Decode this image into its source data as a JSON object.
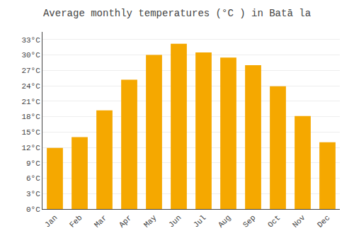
{
  "chart_data": {
    "type": "bar",
    "title": "Average monthly temperatures (°C ) in Batā la",
    "categories": [
      "Jan",
      "Feb",
      "Mar",
      "Apr",
      "May",
      "Jun",
      "Jul",
      "Aug",
      "Sep",
      "Oct",
      "Nov",
      "Dec"
    ],
    "values": [
      11.9,
      14.0,
      19.2,
      25.2,
      30.0,
      32.2,
      30.5,
      29.5,
      28.0,
      23.9,
      18.1,
      13.0
    ],
    "color": "#F5A800",
    "ylim": [
      0,
      34.5
    ],
    "yticks": [
      {
        "value": 0,
        "label": "0°C"
      },
      {
        "value": 3,
        "label": "3°C"
      },
      {
        "value": 6,
        "label": "6°C"
      },
      {
        "value": 9,
        "label": "9°C"
      },
      {
        "value": 12,
        "label": "12°C"
      },
      {
        "value": 15,
        "label": "15°C"
      },
      {
        "value": 18,
        "label": "18°C"
      },
      {
        "value": 21,
        "label": "21°C"
      },
      {
        "value": 24,
        "label": "24°C"
      },
      {
        "value": 27,
        "label": "27°C"
      },
      {
        "value": 30,
        "label": "30°C"
      },
      {
        "value": 33,
        "label": "33°C"
      }
    ],
    "grid": true
  }
}
